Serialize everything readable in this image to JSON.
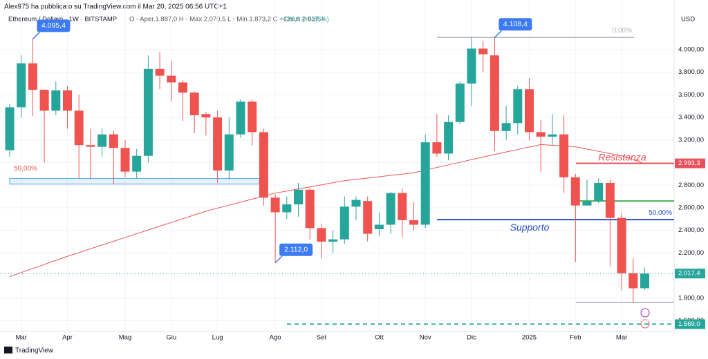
{
  "header": {
    "publisher": "Alex975 ha pubblicato su TradingView.com il Mar 20, 2025 06:56 UTC+1",
    "symbol": "Ethereum / Dollaro · 1W · BITSTAMP",
    "ohlc": "O - Aper.1.887,0  H - Max.2.070,5  L - Min.1.873,2  C - Chius.2.017,4",
    "change": "+129,9 (+6,88%)",
    "currency": "USD",
    "footer": "TradingView"
  },
  "chart_data": {
    "type": "candlestick",
    "up_color": "#26a69a",
    "down_color": "#ef5350",
    "categories": [
      null,
      "Mar",
      null,
      null,
      null,
      "Apr",
      null,
      null,
      null,
      null,
      "Mag",
      null,
      null,
      null,
      "Giu",
      null,
      null,
      null,
      "Lug",
      null,
      null,
      null,
      null,
      "Ago",
      null,
      null,
      null,
      "Set",
      null,
      null,
      null,
      null,
      "Ott",
      null,
      null,
      null,
      "Nov",
      null,
      null,
      null,
      "Dic",
      null,
      null,
      null,
      null,
      "2025",
      null,
      null,
      null,
      "Feb",
      null,
      null,
      null,
      "Mar",
      null,
      null
    ],
    "open": [
      3110,
      3490,
      3880,
      3645,
      3460,
      3640,
      3460,
      3155,
      3140,
      3250,
      3130,
      2920,
      3060,
      3830,
      3770,
      3710,
      3620,
      3430,
      3400,
      2930,
      3250,
      3540,
      3270,
      2690,
      2560,
      2630,
      2760,
      2420,
      2300,
      2320,
      2610,
      2660,
      2410,
      2450,
      2730,
      2490,
      2450,
      3180,
      3080,
      3360,
      3700,
      4010,
      3950,
      3280,
      3350,
      3650,
      3270,
      3230,
      3250,
      2870,
      2620,
      2660,
      2820,
      2510,
      2020,
      1887
    ],
    "high": [
      3520,
      3950,
      4095.4,
      3650,
      3720,
      3680,
      3600,
      3300,
      3300,
      3280,
      3200,
      3120,
      3950,
      3980,
      3900,
      3730,
      3630,
      3450,
      3460,
      3400,
      3560,
      3560,
      3300,
      2720,
      2700,
      2820,
      2780,
      2460,
      2400,
      2700,
      2700,
      2700,
      2560,
      2740,
      2770,
      2650,
      3250,
      3430,
      3420,
      3720,
      4110,
      4080,
      4108.4,
      3500,
      3680,
      3750,
      3380,
      3430,
      3420,
      2900,
      2850,
      2860,
      2850,
      2550,
      2150,
      2070.5
    ],
    "low": [
      3050,
      3400,
      3413,
      3000,
      3420,
      3300,
      2860,
      2850,
      3050,
      2810,
      2870,
      2860,
      3000,
      3650,
      3540,
      3370,
      3260,
      3240,
      2820,
      2850,
      3220,
      3150,
      2620,
      2112,
      2500,
      2520,
      2320,
      2150,
      2200,
      2280,
      2490,
      2300,
      2350,
      2370,
      2340,
      2400,
      2420,
      3050,
      3020,
      3340,
      3500,
      3800,
      3100,
      3200,
      3250,
      3200,
      2920,
      3150,
      2730,
      2120,
      2620,
      2640,
      2080,
      1870,
      1760,
      1873.2
    ],
    "close": [
      3490,
      3880,
      3645,
      3460,
      3640,
      3460,
      3155,
      3140,
      3250,
      3130,
      2920,
      3060,
      3830,
      3770,
      3710,
      3620,
      3420,
      3400,
      2930,
      3250,
      3540,
      3270,
      2690,
      2560,
      2630,
      2760,
      2420,
      2300,
      2320,
      2610,
      2670,
      2370,
      2450,
      2730,
      2490,
      2450,
      3180,
      3080,
      3360,
      3700,
      4010,
      3960,
      3280,
      3350,
      3650,
      3270,
      3230,
      3250,
      2870,
      2620,
      2660,
      2820,
      2510,
      2020,
      1887,
      2017.4
    ],
    "high_labels": [
      null,
      null,
      "4.095,4",
      null,
      null,
      null,
      null,
      null,
      null,
      null,
      null,
      null,
      null,
      null,
      null,
      null,
      null,
      null,
      null,
      null,
      null,
      null,
      null,
      null,
      null,
      null,
      null,
      null,
      null,
      null,
      null,
      null,
      null,
      null,
      null,
      null,
      null,
      null,
      null,
      null,
      null,
      null,
      "4.108,4",
      null,
      null,
      null,
      null,
      null,
      null,
      null,
      null,
      null,
      null,
      null,
      null,
      null
    ],
    "low_labels": [
      null,
      null,
      null,
      null,
      null,
      null,
      null,
      null,
      null,
      null,
      null,
      null,
      null,
      null,
      null,
      null,
      null,
      null,
      null,
      null,
      null,
      null,
      null,
      "2.112,0",
      null,
      null,
      null,
      null,
      null,
      null,
      null,
      null,
      null,
      null,
      null,
      null,
      null,
      null,
      null,
      null,
      null,
      null,
      null,
      null,
      null,
      null,
      null,
      null,
      null,
      null,
      null,
      null,
      null,
      null,
      null,
      null
    ],
    "series": [
      {
        "color": "#ef5350",
        "values": [
          1990,
          2026,
          2062,
          2098,
          2134,
          2170,
          2203,
          2237,
          2270,
          2303,
          2337,
          2370,
          2403,
          2437,
          2470,
          2503,
          2537,
          2570,
          2597,
          2623,
          2650,
          2677,
          2703,
          2730,
          2748,
          2767,
          2785,
          2803,
          2822,
          2840,
          2852,
          2863,
          2875,
          2887,
          2898,
          2910,
          2933,
          2957,
          2980,
          3003,
          3027,
          3050,
          3072,
          3094,
          3116,
          3138,
          3160,
          3153,
          3147,
          3140,
          3120,
          3100,
          3080,
          3060,
          3025,
          2990
        ]
      }
    ],
    "ylim": [
      1505,
      4257
    ],
    "yticks": [
      {
        "value": 1600,
        "label": "1.600,00"
      },
      {
        "value": 1800,
        "label": "1.800,00"
      },
      {
        "value": 2000,
        "label": "2.000,00"
      },
      {
        "value": 2200,
        "label": "2.200,00"
      },
      {
        "value": 2400,
        "label": "2.400,00"
      },
      {
        "value": 2600,
        "label": "2.600,00"
      },
      {
        "value": 2800,
        "label": "2.800,00"
      },
      {
        "value": 3000,
        "label": "3.000,00"
      },
      {
        "value": 3200,
        "label": "3.200,00"
      },
      {
        "value": 3400,
        "label": "3.400,00"
      },
      {
        "value": 3600,
        "label": "3.600,00"
      },
      {
        "value": 3800,
        "label": "3.800,00"
      },
      {
        "value": 4000,
        "label": "4.000,00"
      }
    ],
    "grid": true,
    "annotations": [
      {
        "value": 4108.4,
        "label": "0,00%",
        "color": "#b2b5be"
      },
      {
        "values": [
          2810,
          2860
        ],
        "label": "50,00%",
        "color": "#e8584f"
      },
      {
        "value": 2993.3,
        "text": "Resistenza",
        "axis_label": "2.993,3",
        "color": "#e8505b"
      },
      {
        "value": 2660,
        "color": "#4caf50"
      },
      {
        "value": 2495,
        "label": "50,00%",
        "text": "Supporto",
        "color": "#2a4fc9"
      },
      {
        "value": 1760,
        "color": "#b2b5be"
      },
      {
        "value": 1569,
        "axis_label": "1.569,0",
        "color": "#26a69a"
      }
    ],
    "last_price": {
      "value": 2017.4,
      "label": "2.017,4"
    }
  }
}
